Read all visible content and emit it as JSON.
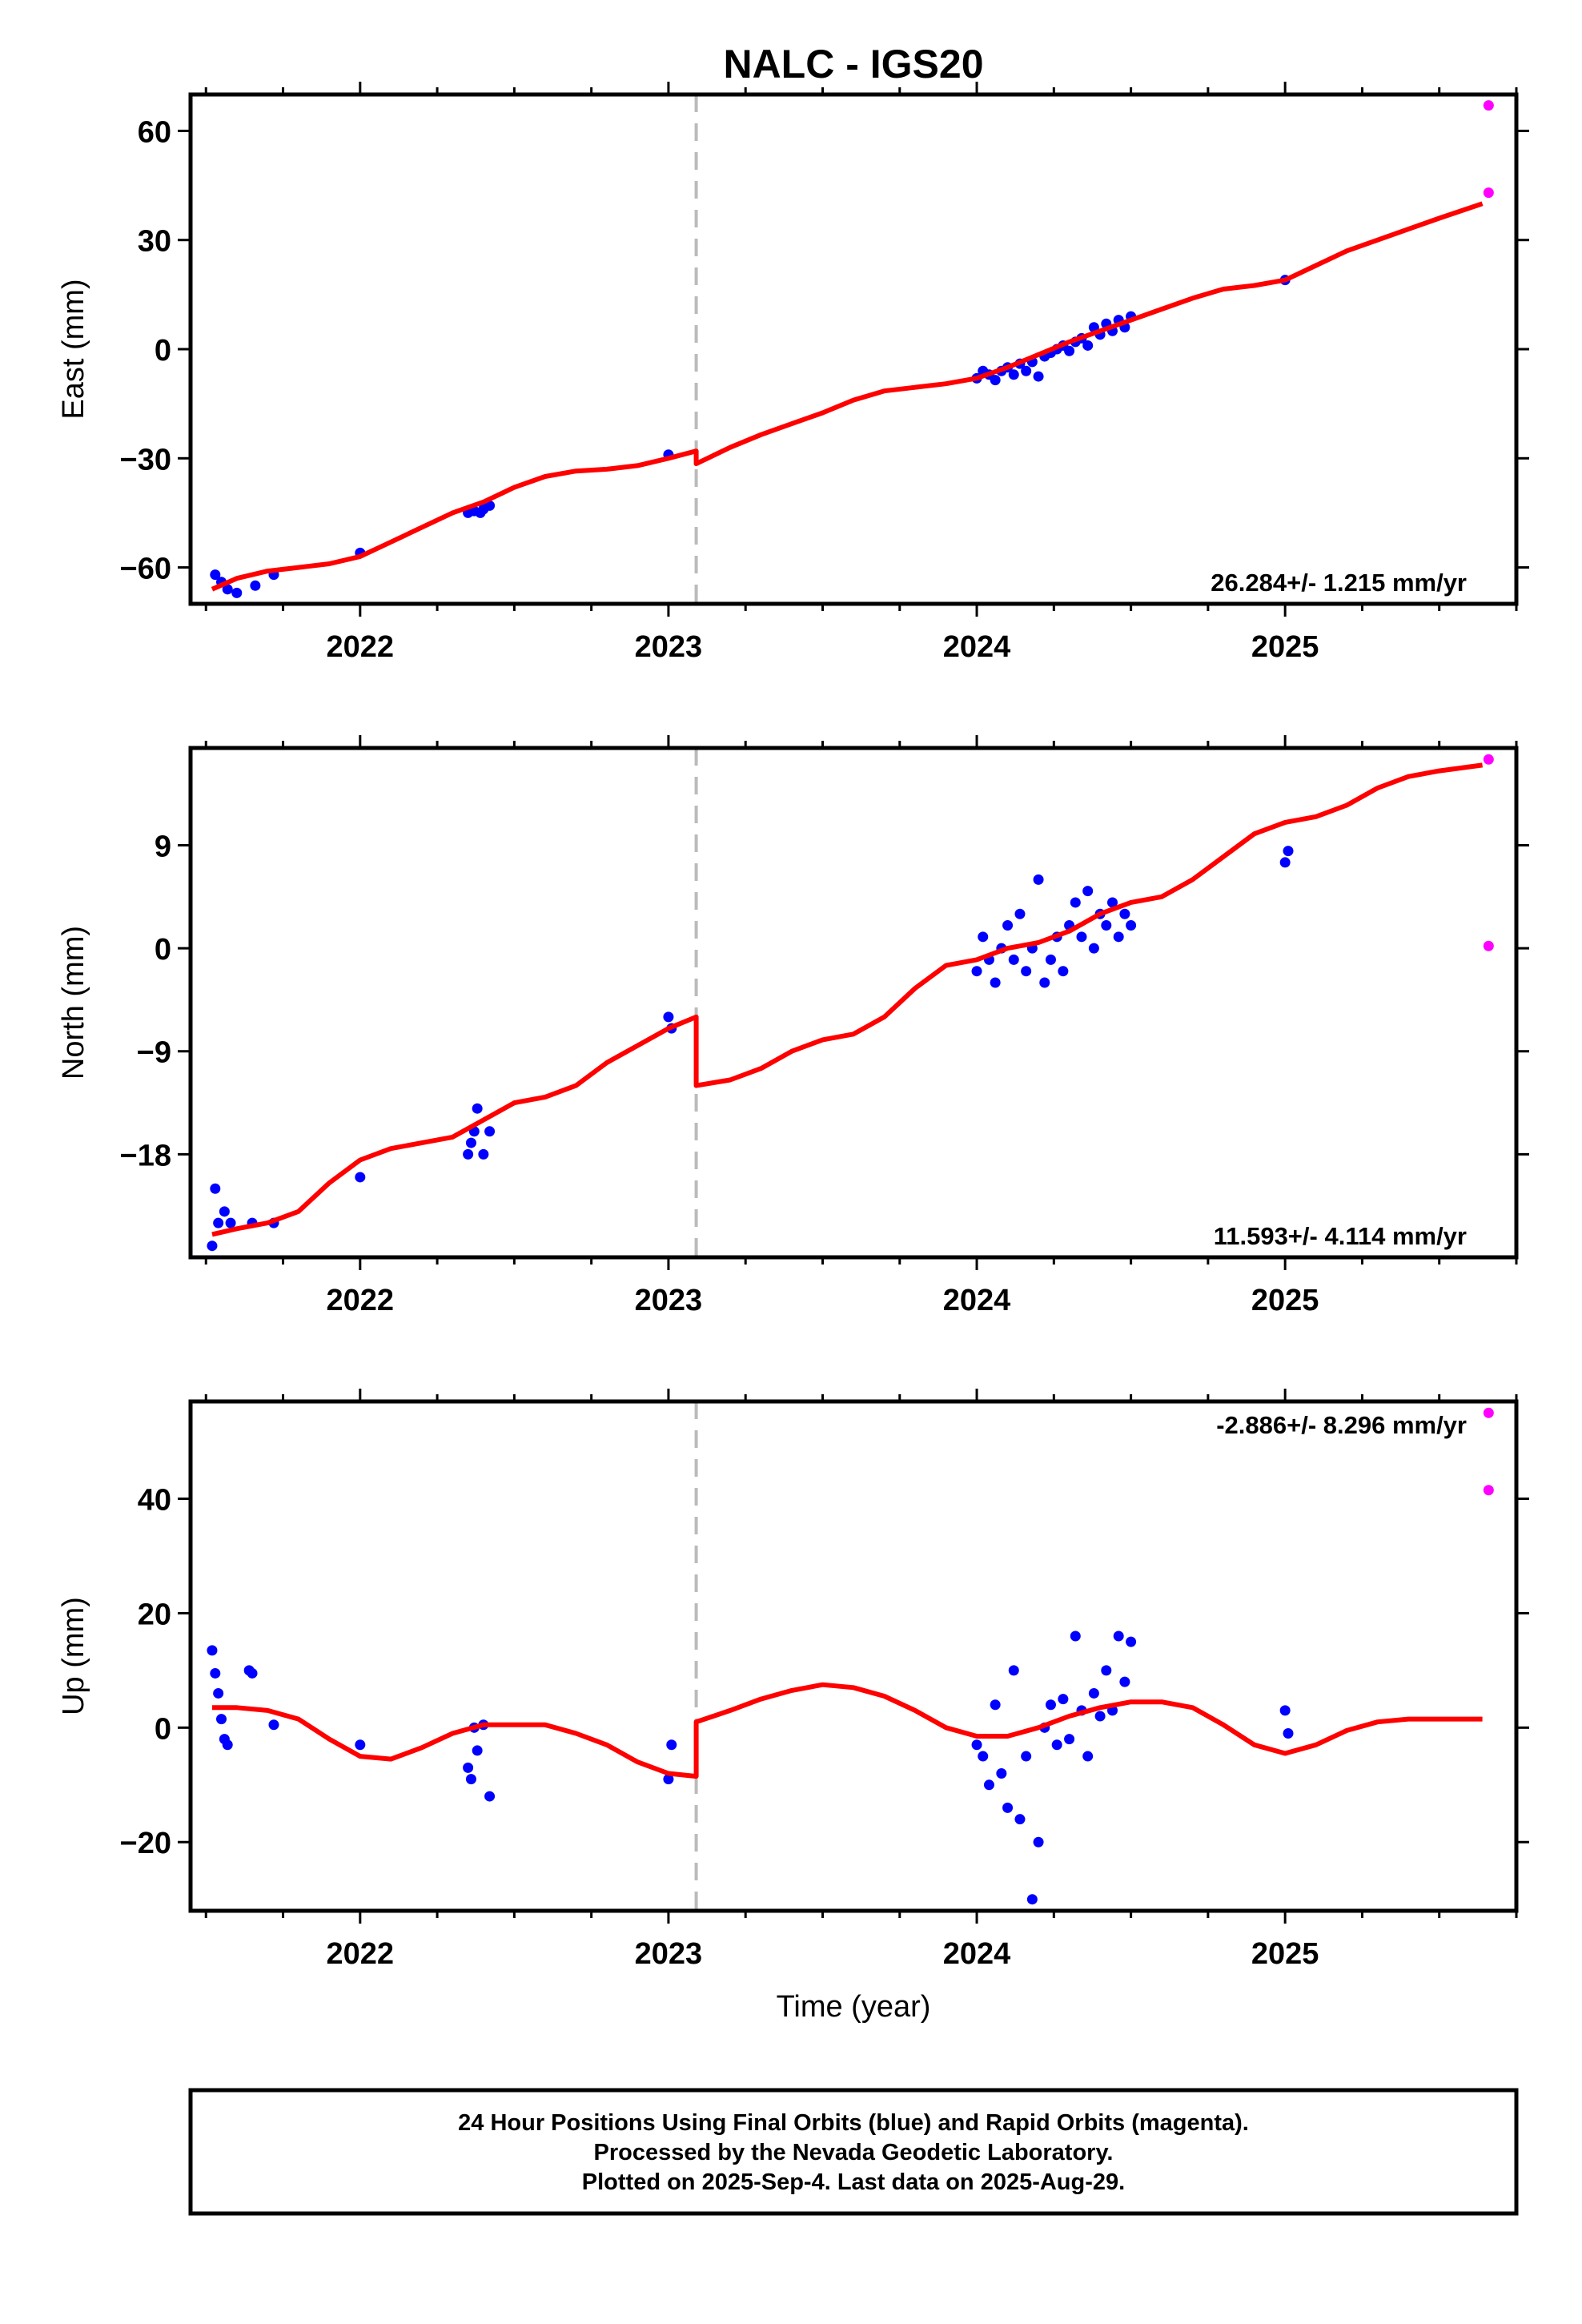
{
  "title": "NALC - IGS20",
  "colors": {
    "final": "#0000ff",
    "rapid": "#ff00ff",
    "model": "#ff0000",
    "step_line": "#bbbbbb",
    "frame": "#000000"
  },
  "footer": {
    "line1": "24 Hour Positions Using Final Orbits (blue) and Rapid Orbits (magenta).",
    "line2": "Processed by the Nevada Geodetic Laboratory.",
    "line3": "Plotted on 2025-Sep-4. Last data on 2025-Aug-29."
  },
  "chart_data": [
    {
      "type": "scatter",
      "ylabel": "East (mm)",
      "xlabel": "",
      "xlim": [
        2021.45,
        2025.75
      ],
      "ylim": [
        -70,
        70
      ],
      "yticks": [
        -60,
        -30,
        0,
        30,
        60
      ],
      "ytick_labels": [
        "−60",
        "−30",
        "0",
        "30",
        "60"
      ],
      "xticks": [
        2022,
        2023,
        2024,
        2025
      ],
      "xtick_labels": [
        "2022",
        "2023",
        "2024",
        "2025"
      ],
      "rate_label": "26.284+/- 1.215 mm/yr",
      "step_epoch": 2023.09,
      "model": {
        "x": [
          2021.52,
          2021.6,
          2021.7,
          2021.8,
          2021.9,
          2022.0,
          2022.1,
          2022.2,
          2022.3,
          2022.4,
          2022.5,
          2022.6,
          2022.7,
          2022.8,
          2022.9,
          2023.0,
          2023.09,
          2023.09,
          2023.2,
          2023.3,
          2023.4,
          2023.5,
          2023.6,
          2023.7,
          2023.8,
          2023.9,
          2024.0,
          2024.1,
          2024.2,
          2024.3,
          2024.4,
          2024.5,
          2024.6,
          2024.7,
          2024.8,
          2024.9,
          2025.0,
          2025.1,
          2025.2,
          2025.3,
          2025.4,
          2025.5,
          2025.64
        ],
        "y": [
          -66,
          -63,
          -61,
          -60,
          -59,
          -57,
          -53,
          -49,
          -45,
          -42,
          -38,
          -35,
          -33.5,
          -33,
          -32,
          -30,
          -28,
          -31.5,
          -27,
          -23.5,
          -20.5,
          -17.5,
          -14,
          -11.5,
          -10.5,
          -9.5,
          -8,
          -5,
          -1.5,
          2,
          5,
          8,
          11,
          14,
          16.5,
          17.5,
          19,
          23,
          27,
          30,
          33,
          36,
          40
        ]
      },
      "series": [
        {
          "name": "Final Orbits (blue)",
          "color": "#0000ff",
          "x": [
            2021.53,
            2021.55,
            2021.57,
            2021.6,
            2021.66,
            2021.72,
            2022.0,
            2022.35,
            2022.37,
            2022.39,
            2022.4,
            2022.42,
            2023.0,
            2024.0,
            2024.02,
            2024.04,
            2024.06,
            2024.08,
            2024.1,
            2024.12,
            2024.14,
            2024.16,
            2024.18,
            2024.2,
            2024.22,
            2024.24,
            2024.26,
            2024.28,
            2024.3,
            2024.32,
            2024.34,
            2024.36,
            2024.38,
            2024.4,
            2024.42,
            2024.44,
            2024.46,
            2024.48,
            2024.5,
            2025.0
          ],
          "y": [
            -62,
            -64,
            -66,
            -67,
            -65,
            -62,
            -56,
            -45,
            -44.5,
            -45,
            -44,
            -43,
            -29,
            -8,
            -6,
            -7,
            -8.5,
            -6,
            -5,
            -7,
            -4,
            -6,
            -3.5,
            -7.5,
            -2,
            -1,
            0,
            1,
            -0.5,
            2,
            3,
            1,
            6,
            4,
            7,
            5,
            8,
            6,
            9,
            19
          ]
        },
        {
          "name": "Rapid Orbits (magenta)",
          "color": "#ff00ff",
          "x": [
            2025.66,
            2025.66
          ],
          "y": [
            67,
            43
          ]
        }
      ]
    },
    {
      "type": "scatter",
      "ylabel": "North (mm)",
      "xlabel": "",
      "xlim": [
        2021.45,
        2025.75
      ],
      "ylim": [
        -27,
        17.5
      ],
      "yticks": [
        -18,
        -9,
        0,
        9
      ],
      "ytick_labels": [
        "−18",
        "−9",
        "0",
        "9"
      ],
      "xticks": [
        2022,
        2023,
        2024,
        2025
      ],
      "xtick_labels": [
        "2022",
        "2023",
        "2024",
        "2025"
      ],
      "rate_label": "11.593+/- 4.114 mm/yr",
      "step_epoch": 2023.09,
      "model": {
        "x": [
          2021.52,
          2021.6,
          2021.7,
          2021.8,
          2021.9,
          2022.0,
          2022.1,
          2022.2,
          2022.3,
          2022.4,
          2022.5,
          2022.6,
          2022.7,
          2022.8,
          2022.9,
          2023.0,
          2023.09,
          2023.09,
          2023.2,
          2023.3,
          2023.4,
          2023.5,
          2023.6,
          2023.7,
          2023.8,
          2023.9,
          2024.0,
          2024.1,
          2024.2,
          2024.3,
          2024.4,
          2024.5,
          2024.6,
          2024.7,
          2024.8,
          2024.9,
          2025.0,
          2025.1,
          2025.2,
          2025.3,
          2025.4,
          2025.5,
          2025.64
        ],
        "y": [
          -25,
          -24.5,
          -24,
          -23,
          -20.5,
          -18.5,
          -17.5,
          -17,
          -16.5,
          -15,
          -13.5,
          -13,
          -12,
          -10,
          -8.5,
          -7,
          -6,
          -12,
          -11.5,
          -10.5,
          -9,
          -8,
          -7.5,
          -6,
          -3.5,
          -1.5,
          -1,
          0,
          0.5,
          1.5,
          3,
          4,
          4.5,
          6,
          8,
          10,
          11,
          11.5,
          12.5,
          14,
          15,
          15.5,
          16
        ]
      },
      "series": [
        {
          "name": "Final Orbits (blue)",
          "color": "#0000ff",
          "x": [
            2021.52,
            2021.53,
            2021.54,
            2021.56,
            2021.58,
            2021.65,
            2021.72,
            2022.0,
            2022.35,
            2022.36,
            2022.37,
            2022.38,
            2022.4,
            2022.42,
            2023.0,
            2023.01,
            2024.0,
            2024.02,
            2024.04,
            2024.06,
            2024.08,
            2024.1,
            2024.12,
            2024.14,
            2024.16,
            2024.18,
            2024.2,
            2024.22,
            2024.24,
            2024.26,
            2024.28,
            2024.3,
            2024.32,
            2024.34,
            2024.36,
            2024.38,
            2024.4,
            2024.42,
            2024.44,
            2024.46,
            2024.48,
            2024.5,
            2025.0,
            2025.01
          ],
          "y": [
            -26,
            -21,
            -24,
            -23,
            -24,
            -24,
            -24,
            -20,
            -18,
            -17,
            -16,
            -14,
            -18,
            -16,
            -6,
            -7,
            -2,
            1,
            -1,
            -3,
            0,
            2,
            -1,
            3,
            -2,
            0,
            6,
            -3,
            -1,
            1,
            -2,
            2,
            4,
            1,
            5,
            0,
            3,
            2,
            4,
            1,
            3,
            2,
            7.5,
            8.5
          ]
        },
        {
          "name": "Rapid Orbits (magenta)",
          "color": "#ff00ff",
          "x": [
            2025.66,
            2025.66
          ],
          "y": [
            16.5,
            0.2
          ]
        }
      ]
    },
    {
      "type": "scatter",
      "ylabel": "Up (mm)",
      "xlabel": "Time (year)",
      "xlim": [
        2021.45,
        2025.75
      ],
      "ylim": [
        -32,
        57
      ],
      "yticks": [
        -20,
        0,
        20,
        40
      ],
      "ytick_labels": [
        "−20",
        "0",
        "20",
        "40"
      ],
      "xticks": [
        2022,
        2023,
        2024,
        2025
      ],
      "xtick_labels": [
        "2022",
        "2023",
        "2024",
        "2025"
      ],
      "rate_label": "-2.886+/- 8.296 mm/yr",
      "step_epoch": 2023.09,
      "model": {
        "x": [
          2021.52,
          2021.6,
          2021.7,
          2021.8,
          2021.9,
          2022.0,
          2022.1,
          2022.2,
          2022.3,
          2022.4,
          2022.5,
          2022.6,
          2022.7,
          2022.8,
          2022.9,
          2023.0,
          2023.09,
          2023.09,
          2023.2,
          2023.3,
          2023.4,
          2023.5,
          2023.6,
          2023.7,
          2023.8,
          2023.9,
          2024.0,
          2024.1,
          2024.2,
          2024.3,
          2024.4,
          2024.5,
          2024.6,
          2024.7,
          2024.8,
          2024.9,
          2025.0,
          2025.1,
          2025.2,
          2025.3,
          2025.4,
          2025.5,
          2025.64
        ],
        "y": [
          3.5,
          3.5,
          3,
          1.5,
          -2,
          -5,
          -5.5,
          -3.5,
          -1,
          0.5,
          0.5,
          0.5,
          -1,
          -3,
          -6,
          -8,
          -8.5,
          1,
          3,
          5,
          6.5,
          7.5,
          7,
          5.5,
          3,
          0,
          -1.5,
          -1.5,
          0,
          2,
          3.5,
          4.5,
          4.5,
          3.5,
          0.5,
          -3,
          -4.5,
          -3,
          -0.5,
          1,
          1.5,
          1.5,
          1.5
        ]
      },
      "series": [
        {
          "name": "Final Orbits (blue)",
          "color": "#0000ff",
          "x": [
            2021.52,
            2021.53,
            2021.54,
            2021.55,
            2021.56,
            2021.57,
            2021.64,
            2021.65,
            2021.72,
            2022.0,
            2022.35,
            2022.36,
            2022.37,
            2022.38,
            2022.4,
            2022.42,
            2023.0,
            2023.01,
            2024.0,
            2024.02,
            2024.04,
            2024.06,
            2024.08,
            2024.1,
            2024.12,
            2024.14,
            2024.16,
            2024.18,
            2024.2,
            2024.22,
            2024.24,
            2024.26,
            2024.28,
            2024.3,
            2024.32,
            2024.34,
            2024.36,
            2024.38,
            2024.4,
            2024.42,
            2024.44,
            2024.46,
            2024.48,
            2024.5,
            2025.0,
            2025.01
          ],
          "y": [
            13.5,
            9.5,
            6,
            1.5,
            -2,
            -3,
            10,
            9.5,
            0.5,
            -3,
            -7,
            -9,
            0,
            -4,
            0.5,
            -12,
            -9,
            -3,
            -3,
            -5,
            -10,
            4,
            -8,
            -14,
            10,
            -16,
            -5,
            -30,
            -20,
            0,
            4,
            -3,
            5,
            -2,
            16,
            3,
            -5,
            6,
            2,
            10,
            3,
            16,
            8,
            15,
            3,
            -1
          ]
        },
        {
          "name": "Rapid Orbits (magenta)",
          "color": "#ff00ff",
          "x": [
            2025.66,
            2025.66
          ],
          "y": [
            55,
            41.5
          ]
        }
      ]
    }
  ]
}
